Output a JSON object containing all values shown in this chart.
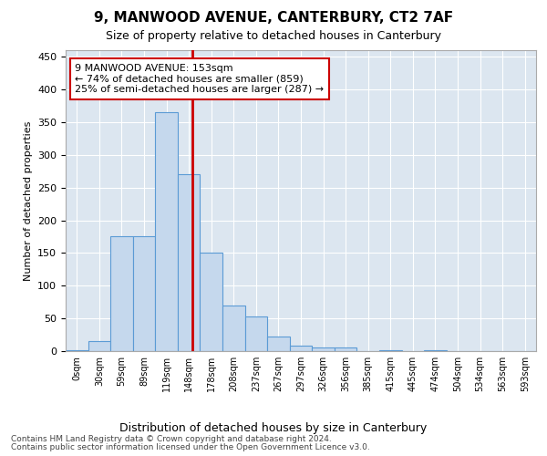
{
  "title": "9, MANWOOD AVENUE, CANTERBURY, CT2 7AF",
  "subtitle": "Size of property relative to detached houses in Canterbury",
  "xlabel": "Distribution of detached houses by size in Canterbury",
  "ylabel": "Number of detached properties",
  "bar_values": [
    2,
    15,
    175,
    175,
    365,
    270,
    150,
    70,
    53,
    22,
    8,
    5,
    6,
    0,
    2,
    0,
    2,
    0,
    0,
    0,
    0
  ],
  "bar_labels": [
    "0sqm",
    "30sqm",
    "59sqm",
    "89sqm",
    "119sqm",
    "148sqm",
    "178sqm",
    "208sqm",
    "237sqm",
    "267sqm",
    "297sqm",
    "326sqm",
    "356sqm",
    "385sqm",
    "415sqm",
    "445sqm",
    "474sqm",
    "504sqm",
    "534sqm",
    "563sqm",
    "593sqm"
  ],
  "bar_color": "#c5d8ed",
  "bar_edge_color": "#5b9bd5",
  "vline_color": "#cc0000",
  "annotation_text": "9 MANWOOD AVENUE: 153sqm\n← 74% of detached houses are smaller (859)\n25% of semi-detached houses are larger (287) →",
  "annotation_box_color": "#ffffff",
  "annotation_box_edge_color": "#cc0000",
  "ylim": [
    0,
    460
  ],
  "yticks": [
    0,
    50,
    100,
    150,
    200,
    250,
    300,
    350,
    400,
    450
  ],
  "bg_color": "#dce6f0",
  "grid_color": "#ffffff",
  "footer_line1": "Contains HM Land Registry data © Crown copyright and database right 2024.",
  "footer_line2": "Contains public sector information licensed under the Open Government Licence v3.0."
}
